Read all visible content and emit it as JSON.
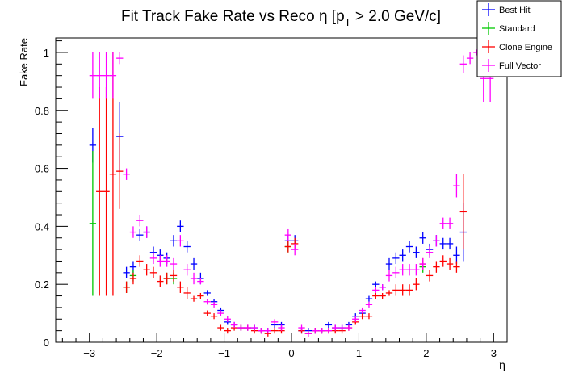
{
  "chart_data": {
    "type": "scatter",
    "title": "Fit Track Fake Rate vs Reco η [p",
    "title_sub": "T",
    "title_tail": " > 2.0 GeV/c]",
    "xlabel": "η",
    "ylabel": "Fake Rate",
    "xlim": [
      -3.5,
      3.2
    ],
    "ylim": [
      0,
      1.05
    ],
    "x_ticks": [
      -3,
      -2,
      -1,
      0,
      1,
      2,
      3
    ],
    "x_tick_labels": [
      "−3",
      "−2",
      "−1",
      "0",
      "1",
      "2",
      "3"
    ],
    "y_ticks": [
      0,
      0.2,
      0.4,
      0.6,
      0.8,
      1
    ],
    "y_tick_labels": [
      "0",
      "0.2",
      "0.4",
      "0.6",
      "0.8",
      "1"
    ],
    "grid": false,
    "legend_position": "top-right",
    "series": [
      {
        "name": "Best Hit",
        "color": "#0000ff",
        "points": [
          [
            -2.95,
            0.68,
            0.06
          ],
          [
            -2.55,
            0.71,
            0.12
          ],
          [
            -2.45,
            0.24,
            0.02
          ],
          [
            -2.35,
            0.26,
            0.02
          ],
          [
            -2.25,
            0.37,
            0.02
          ],
          [
            -2.15,
            0.38,
            0.02
          ],
          [
            -2.05,
            0.31,
            0.02
          ],
          [
            -1.95,
            0.3,
            0.02
          ],
          [
            -1.85,
            0.29,
            0.02
          ],
          [
            -1.75,
            0.35,
            0.02
          ],
          [
            -1.65,
            0.4,
            0.02
          ],
          [
            -1.55,
            0.33,
            0.02
          ],
          [
            -1.45,
            0.27,
            0.02
          ],
          [
            -1.35,
            0.22,
            0.02
          ],
          [
            -1.25,
            0.17,
            0.01
          ],
          [
            -1.15,
            0.14,
            0.01
          ],
          [
            -1.05,
            0.11,
            0.01
          ],
          [
            -0.95,
            0.07,
            0.01
          ],
          [
            -0.85,
            0.06,
            0.01
          ],
          [
            -0.75,
            0.05,
            0.01
          ],
          [
            -0.65,
            0.05,
            0.01
          ],
          [
            -0.55,
            0.05,
            0.01
          ],
          [
            -0.45,
            0.04,
            0.01
          ],
          [
            -0.35,
            0.04,
            0.01
          ],
          [
            -0.25,
            0.06,
            0.01
          ],
          [
            -0.15,
            0.06,
            0.01
          ],
          [
            -0.05,
            0.35,
            0.02
          ],
          [
            0.05,
            0.35,
            0.02
          ],
          [
            0.15,
            0.04,
            0.01
          ],
          [
            0.25,
            0.04,
            0.01
          ],
          [
            0.35,
            0.04,
            0.01
          ],
          [
            0.45,
            0.04,
            0.01
          ],
          [
            0.55,
            0.06,
            0.01
          ],
          [
            0.65,
            0.05,
            0.01
          ],
          [
            0.75,
            0.05,
            0.01
          ],
          [
            0.85,
            0.06,
            0.01
          ],
          [
            0.95,
            0.09,
            0.01
          ],
          [
            1.05,
            0.1,
            0.01
          ],
          [
            1.15,
            0.15,
            0.01
          ],
          [
            1.25,
            0.2,
            0.01
          ],
          [
            1.35,
            0.19,
            0.01
          ],
          [
            1.45,
            0.27,
            0.02
          ],
          [
            1.55,
            0.29,
            0.02
          ],
          [
            1.65,
            0.3,
            0.02
          ],
          [
            1.75,
            0.33,
            0.02
          ],
          [
            1.85,
            0.31,
            0.02
          ],
          [
            1.95,
            0.36,
            0.02
          ],
          [
            2.05,
            0.32,
            0.02
          ],
          [
            2.15,
            0.35,
            0.02
          ],
          [
            2.25,
            0.34,
            0.02
          ],
          [
            2.35,
            0.34,
            0.02
          ],
          [
            2.45,
            0.3,
            0.03
          ],
          [
            2.55,
            0.38,
            0.1
          ]
        ]
      },
      {
        "name": "Standard",
        "color": "#00c800",
        "points": [
          [
            -2.95,
            0.41,
            0.25
          ],
          [
            -2.45,
            0.19,
            0.02
          ],
          [
            -2.35,
            0.23,
            0.02
          ],
          [
            -1.85,
            0.22,
            0.02
          ],
          [
            -1.75,
            0.22,
            0.02
          ],
          [
            -0.05,
            0.33,
            0.02
          ],
          [
            1.95,
            0.26,
            0.02
          ]
        ]
      },
      {
        "name": "Clone Engine",
        "color": "#ff0000",
        "points": [
          [
            -2.85,
            0.52,
            0.36
          ],
          [
            -2.75,
            0.52,
            0.36
          ],
          [
            -2.65,
            0.58,
            0.42
          ],
          [
            -2.55,
            0.59,
            0.13
          ],
          [
            -2.45,
            0.19,
            0.02
          ],
          [
            -2.35,
            0.22,
            0.02
          ],
          [
            -2.25,
            0.28,
            0.02
          ],
          [
            -2.15,
            0.25,
            0.02
          ],
          [
            -2.05,
            0.24,
            0.02
          ],
          [
            -1.95,
            0.21,
            0.02
          ],
          [
            -1.85,
            0.22,
            0.02
          ],
          [
            -1.75,
            0.23,
            0.02
          ],
          [
            -1.65,
            0.19,
            0.02
          ],
          [
            -1.55,
            0.17,
            0.02
          ],
          [
            -1.45,
            0.15,
            0.01
          ],
          [
            -1.35,
            0.16,
            0.01
          ],
          [
            -1.25,
            0.1,
            0.01
          ],
          [
            -1.15,
            0.09,
            0.01
          ],
          [
            -1.05,
            0.05,
            0.01
          ],
          [
            -0.95,
            0.04,
            0.01
          ],
          [
            -0.85,
            0.05,
            0.01
          ],
          [
            -0.75,
            0.05,
            0.01
          ],
          [
            -0.65,
            0.05,
            0.01
          ],
          [
            -0.55,
            0.04,
            0.01
          ],
          [
            -0.45,
            0.04,
            0.01
          ],
          [
            -0.35,
            0.03,
            0.01
          ],
          [
            -0.25,
            0.04,
            0.01
          ],
          [
            -0.15,
            0.04,
            0.01
          ],
          [
            -0.05,
            0.33,
            0.02
          ],
          [
            0.05,
            0.34,
            0.02
          ],
          [
            0.15,
            0.04,
            0.01
          ],
          [
            0.25,
            0.03,
            0.01
          ],
          [
            0.35,
            0.04,
            0.01
          ],
          [
            0.45,
            0.04,
            0.01
          ],
          [
            0.55,
            0.04,
            0.01
          ],
          [
            0.65,
            0.04,
            0.01
          ],
          [
            0.75,
            0.04,
            0.01
          ],
          [
            0.85,
            0.05,
            0.01
          ],
          [
            0.95,
            0.07,
            0.01
          ],
          [
            1.05,
            0.09,
            0.01
          ],
          [
            1.15,
            0.09,
            0.01
          ],
          [
            1.25,
            0.16,
            0.01
          ],
          [
            1.35,
            0.16,
            0.01
          ],
          [
            1.45,
            0.17,
            0.01
          ],
          [
            1.55,
            0.18,
            0.02
          ],
          [
            1.65,
            0.18,
            0.02
          ],
          [
            1.75,
            0.18,
            0.02
          ],
          [
            1.85,
            0.2,
            0.02
          ],
          [
            1.95,
            0.27,
            0.02
          ],
          [
            2.05,
            0.23,
            0.02
          ],
          [
            2.15,
            0.26,
            0.02
          ],
          [
            2.25,
            0.28,
            0.02
          ],
          [
            2.35,
            0.27,
            0.02
          ],
          [
            2.45,
            0.26,
            0.02
          ],
          [
            2.55,
            0.45,
            0.13
          ]
        ]
      },
      {
        "name": "Full Vector",
        "color": "#ff00ff",
        "points": [
          [
            -2.95,
            0.92,
            0.08
          ],
          [
            -2.85,
            0.92,
            0.08
          ],
          [
            -2.75,
            0.92,
            0.08
          ],
          [
            -2.65,
            0.92,
            0.08
          ],
          [
            -2.55,
            0.98,
            0.02
          ],
          [
            -2.45,
            0.58,
            0.02
          ],
          [
            -2.35,
            0.38,
            0.02
          ],
          [
            -2.25,
            0.42,
            0.02
          ],
          [
            -2.15,
            0.38,
            0.02
          ],
          [
            -2.05,
            0.29,
            0.02
          ],
          [
            -1.95,
            0.28,
            0.02
          ],
          [
            -1.85,
            0.28,
            0.02
          ],
          [
            -1.75,
            0.27,
            0.02
          ],
          [
            -1.65,
            0.35,
            0.02
          ],
          [
            -1.55,
            0.25,
            0.02
          ],
          [
            -1.45,
            0.22,
            0.02
          ],
          [
            -1.35,
            0.21,
            0.01
          ],
          [
            -1.25,
            0.14,
            0.01
          ],
          [
            -1.15,
            0.13,
            0.01
          ],
          [
            -1.05,
            0.1,
            0.01
          ],
          [
            -0.95,
            0.08,
            0.01
          ],
          [
            -0.85,
            0.06,
            0.01
          ],
          [
            -0.75,
            0.05,
            0.01
          ],
          [
            -0.65,
            0.05,
            0.01
          ],
          [
            -0.55,
            0.05,
            0.01
          ],
          [
            -0.45,
            0.04,
            0.01
          ],
          [
            -0.35,
            0.04,
            0.01
          ],
          [
            -0.25,
            0.07,
            0.01
          ],
          [
            -0.15,
            0.05,
            0.01
          ],
          [
            -0.05,
            0.37,
            0.02
          ],
          [
            0.05,
            0.32,
            0.02
          ],
          [
            0.15,
            0.05,
            0.01
          ],
          [
            0.25,
            0.03,
            0.01
          ],
          [
            0.35,
            0.04,
            0.01
          ],
          [
            0.45,
            0.04,
            0.01
          ],
          [
            0.55,
            0.04,
            0.01
          ],
          [
            0.65,
            0.05,
            0.01
          ],
          [
            0.75,
            0.05,
            0.01
          ],
          [
            0.85,
            0.05,
            0.01
          ],
          [
            0.95,
            0.08,
            0.01
          ],
          [
            1.05,
            0.11,
            0.01
          ],
          [
            1.15,
            0.13,
            0.01
          ],
          [
            1.25,
            0.18,
            0.01
          ],
          [
            1.35,
            0.19,
            0.01
          ],
          [
            1.45,
            0.23,
            0.02
          ],
          [
            1.55,
            0.24,
            0.02
          ],
          [
            1.65,
            0.25,
            0.02
          ],
          [
            1.75,
            0.25,
            0.02
          ],
          [
            1.85,
            0.25,
            0.02
          ],
          [
            1.95,
            0.27,
            0.02
          ],
          [
            2.05,
            0.31,
            0.02
          ],
          [
            2.15,
            0.35,
            0.02
          ],
          [
            2.25,
            0.41,
            0.02
          ],
          [
            2.35,
            0.41,
            0.02
          ],
          [
            2.45,
            0.54,
            0.04
          ],
          [
            2.55,
            0.96,
            0.03
          ],
          [
            2.65,
            0.98,
            0.02
          ],
          [
            2.75,
            1.0,
            0.01
          ],
          [
            2.85,
            0.91,
            0.08
          ],
          [
            2.95,
            0.91,
            0.08
          ]
        ]
      }
    ]
  }
}
